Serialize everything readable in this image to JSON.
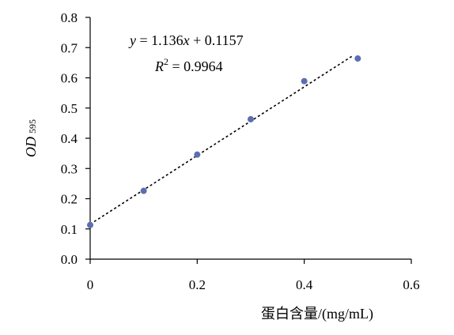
{
  "chart_data": {
    "type": "scatter",
    "x": [
      0,
      0.1,
      0.2,
      0.3,
      0.4,
      0.5
    ],
    "y": [
      0.113,
      0.226,
      0.346,
      0.463,
      0.589,
      0.664
    ],
    "xlim": [
      0,
      0.6
    ],
    "ylim": [
      0.0,
      0.8
    ],
    "xticks": [
      "0",
      "0.2",
      "0.4",
      "0.6"
    ],
    "yticks": [
      "0.0",
      "0.1",
      "0.2",
      "0.3",
      "0.4",
      "0.5",
      "0.6",
      "0.7",
      "0.8"
    ],
    "xlabel": "蛋白含量/(mg/mL)",
    "ylabel": {
      "main": "OD",
      "sub": "595"
    },
    "trendline": {
      "slope": 1.136,
      "intercept": 0.1157,
      "x_range": [
        0,
        0.49
      ]
    },
    "equation": {
      "y": "y",
      "eq": " = 1.136",
      "x": "x",
      "rest": " + 0.1157"
    },
    "r2": {
      "R": "R",
      "sup": "2",
      "rest": " = 0.9964"
    },
    "colors": {
      "point": "#5b6fb0",
      "line": "#000000"
    }
  }
}
